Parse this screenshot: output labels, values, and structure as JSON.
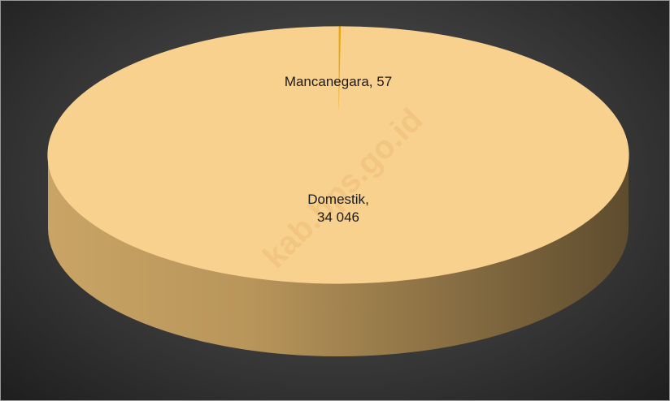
{
  "chart_data": {
    "type": "pie3d",
    "categories": [
      "Mancanegara",
      "Domestik"
    ],
    "values": [
      57,
      34046
    ],
    "value_labels": [
      "57",
      "34 046"
    ],
    "colors": [
      "#e8a70c",
      "#f9d18e"
    ],
    "watermark": "kab.bps.go.id"
  }
}
